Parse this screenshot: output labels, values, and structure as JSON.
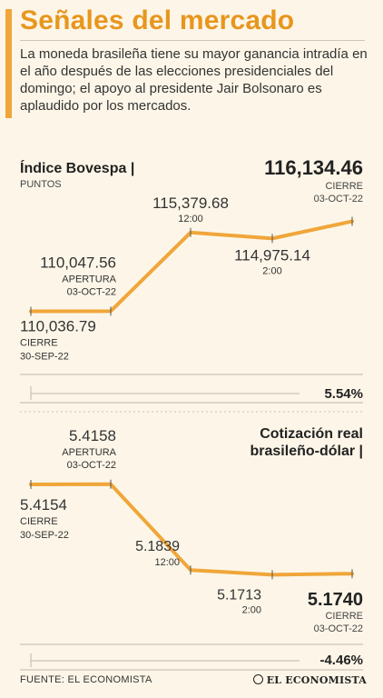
{
  "header": {
    "title": "Señales del mercado",
    "intro": "La moneda brasileña tiene su mayor ganancia intradía en el año después de las elecciones presidenciales del domingo; el apoyo al presidente Jair Bolsonaro es aplaudido por los mercados."
  },
  "colors": {
    "accent": "#f0a63a",
    "title": "#e8961e",
    "text": "#333333",
    "background": "#fdf6e8"
  },
  "chart_data": [
    {
      "type": "line",
      "title": "Índice Bovespa |",
      "subtitle": "PUNTOS",
      "headline_value": "116,134.46",
      "headline_label_1": "CIERRE",
      "headline_label_2": "03-OCT-22",
      "change_label": "5.54%",
      "points": [
        {
          "value": 110036.79,
          "label": "110,036.79",
          "sub1": "CIERRE",
          "sub2": "30-SEP-22"
        },
        {
          "value": 110047.56,
          "label": "110,047.56",
          "sub1": "APERTURA",
          "sub2": "03-OCT-22"
        },
        {
          "value": 115379.68,
          "label": "115,379.68",
          "sub1": "12:00"
        },
        {
          "value": 114975.14,
          "label": "114,975.14",
          "sub1": "2:00"
        },
        {
          "value": 116134.46,
          "label": ""
        }
      ],
      "ylim": [
        109700,
        116600
      ]
    },
    {
      "type": "line",
      "title": "Cotización real",
      "title2": "brasileño-dólar |",
      "headline_value": "5.1740",
      "headline_label_1": "CIERRE",
      "headline_label_2": "03-OCT-22",
      "change_label": "-4.46%",
      "points": [
        {
          "value": 5.4154,
          "label": "5.4154",
          "sub1": "CIERRE",
          "sub2": "30-SEP-22"
        },
        {
          "value": 5.4158,
          "label": "5.4158",
          "sub1": "APERTURA",
          "sub2": "03-OCT-22"
        },
        {
          "value": 5.1839,
          "label": "5.1839",
          "sub1": "12:00"
        },
        {
          "value": 5.1713,
          "label": "5.1713",
          "sub1": "2:00"
        },
        {
          "value": 5.174,
          "label": ""
        }
      ],
      "ylim": [
        5.15,
        5.43
      ]
    }
  ],
  "footer": {
    "source": "FUENTE: EL ECONOMISTA",
    "logo": "EL ECONOMISTA"
  }
}
